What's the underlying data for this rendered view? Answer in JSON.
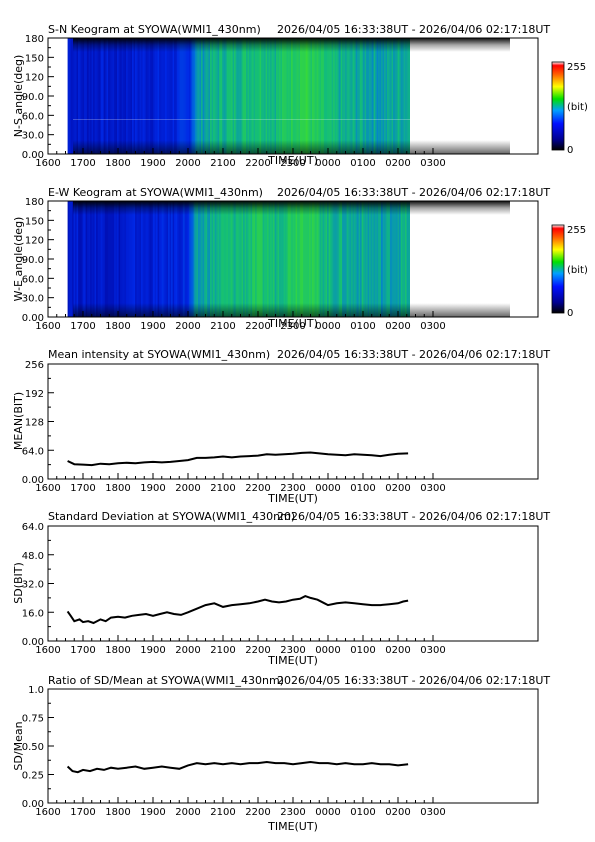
{
  "chart_data": [
    {
      "type": "heatmap",
      "title": "S-N Keogram at SYOWA(WMI1_430nm)",
      "time_range": "2026/04/05 16:33:38UT - 2026/04/06 02:17:18UT",
      "xlabel": "TIME(UT)",
      "ylabel": "N-S angle(deg)",
      "x_ticks": [
        "1600",
        "1700",
        "1800",
        "1900",
        "2000",
        "2100",
        "2200",
        "2300",
        "0000",
        "0100",
        "0200",
        "0300"
      ],
      "y_ticks": [
        "0.00",
        "30.0",
        "60.0",
        "90.0",
        "120",
        "150",
        "180"
      ],
      "ylim": [
        0,
        180
      ],
      "data_start_hours": 16.56,
      "data_end_hours": 26.29,
      "colorbar": {
        "min_label": "0",
        "max_label": "255",
        "unit_label": "(bit)"
      },
      "intensity_profile": {
        "hours": [
          16.56,
          17.0,
          17.5,
          18.0,
          18.5,
          19.0,
          19.5,
          20.0,
          20.2,
          20.5,
          21.0,
          21.5,
          22.0,
          22.5,
          23.0,
          23.3,
          23.6,
          24.0,
          24.5,
          25.0,
          25.5,
          26.0,
          26.29
        ],
        "levels": [
          0.22,
          0.2,
          0.21,
          0.2,
          0.22,
          0.22,
          0.23,
          0.25,
          0.38,
          0.42,
          0.44,
          0.45,
          0.47,
          0.45,
          0.5,
          0.52,
          0.48,
          0.44,
          0.42,
          0.42,
          0.4,
          0.42,
          0.43
        ]
      }
    },
    {
      "type": "heatmap",
      "title": "E-W Keogram at SYOWA(WMI1_430nm)",
      "time_range": "2026/04/05 16:33:38UT - 2026/04/06 02:17:18UT",
      "xlabel": "TIME(UT)",
      "ylabel": "W-E angle(deg)",
      "x_ticks": [
        "1600",
        "1700",
        "1800",
        "1900",
        "2000",
        "2100",
        "2200",
        "2300",
        "0000",
        "0100",
        "0200",
        "0300"
      ],
      "y_ticks": [
        "0.00",
        "30.0",
        "60.0",
        "90.0",
        "120",
        "150",
        "180"
      ],
      "ylim": [
        0,
        180
      ],
      "data_start_hours": 16.56,
      "data_end_hours": 26.29,
      "colorbar": {
        "min_label": "0",
        "max_label": "255",
        "unit_label": "(bit)"
      },
      "intensity_profile": {
        "hours": [
          16.56,
          17.0,
          17.5,
          18.0,
          18.5,
          19.0,
          19.5,
          20.0,
          20.2,
          20.5,
          21.0,
          21.5,
          22.0,
          22.5,
          23.0,
          23.3,
          23.6,
          24.0,
          24.5,
          25.0,
          25.5,
          26.0,
          26.29
        ],
        "levels": [
          0.22,
          0.2,
          0.21,
          0.2,
          0.22,
          0.22,
          0.23,
          0.25,
          0.38,
          0.42,
          0.44,
          0.45,
          0.47,
          0.45,
          0.5,
          0.52,
          0.48,
          0.44,
          0.42,
          0.42,
          0.4,
          0.42,
          0.43
        ]
      }
    },
    {
      "type": "line",
      "title": "Mean intensity at SYOWA(WMI1_430nm)",
      "time_range": "2026/04/05 16:33:38UT - 2026/04/06 02:17:18UT",
      "xlabel": "TIME(UT)",
      "ylabel": "MEAN(BIT)",
      "x_ticks": [
        "1600",
        "1700",
        "1800",
        "1900",
        "2000",
        "2100",
        "2200",
        "2300",
        "0000",
        "0100",
        "0200",
        "0300"
      ],
      "y_ticks": [
        "0.00",
        "64.0",
        "128",
        "192",
        "256"
      ],
      "ylim": [
        0,
        256
      ],
      "series": [
        {
          "x": [
            16.56,
            16.75,
            17.0,
            17.25,
            17.5,
            17.75,
            18.0,
            18.25,
            18.5,
            18.75,
            19.0,
            19.25,
            19.5,
            19.75,
            20.0,
            20.25,
            20.5,
            20.75,
            21.0,
            21.25,
            21.5,
            21.75,
            22.0,
            22.25,
            22.5,
            22.75,
            23.0,
            23.25,
            23.5,
            23.75,
            24.0,
            24.25,
            24.5,
            24.75,
            25.0,
            25.25,
            25.5,
            25.75,
            26.0,
            26.29
          ],
          "y": [
            40,
            33,
            32,
            31,
            34,
            33,
            35,
            36,
            35,
            37,
            38,
            37,
            38,
            40,
            42,
            47,
            47,
            48,
            50,
            48,
            50,
            51,
            52,
            55,
            54,
            55,
            56,
            58,
            59,
            57,
            55,
            54,
            53,
            55,
            54,
            53,
            51,
            54,
            56,
            57
          ]
        }
      ]
    },
    {
      "type": "line",
      "title": "Standard Deviation at SYOWA(WMI1_430nm)",
      "time_range": "2026/04/05 16:33:38UT - 2026/04/06 02:17:18UT",
      "xlabel": "TIME(UT)",
      "ylabel": "SD(BIT)",
      "x_ticks": [
        "1600",
        "1700",
        "1800",
        "1900",
        "2000",
        "2100",
        "2200",
        "2300",
        "0000",
        "0100",
        "0200",
        "0300"
      ],
      "y_ticks": [
        "0.00",
        "16.0",
        "32.0",
        "48.0",
        "64.0"
      ],
      "ylim": [
        0,
        64
      ],
      "series": [
        {
          "x": [
            16.56,
            16.65,
            16.75,
            16.9,
            17.0,
            17.15,
            17.3,
            17.5,
            17.65,
            17.8,
            18.0,
            18.2,
            18.4,
            18.6,
            18.8,
            19.0,
            19.2,
            19.4,
            19.6,
            19.8,
            20.0,
            20.25,
            20.5,
            20.75,
            21.0,
            21.25,
            21.5,
            21.75,
            22.0,
            22.2,
            22.4,
            22.6,
            22.8,
            23.0,
            23.2,
            23.35,
            23.5,
            23.7,
            23.9,
            24.0,
            24.25,
            24.5,
            24.75,
            25.0,
            25.25,
            25.5,
            25.75,
            26.0,
            26.15,
            26.29
          ],
          "y": [
            16.5,
            14,
            11,
            12,
            10.5,
            11,
            10,
            12,
            11,
            13,
            13.5,
            13,
            14,
            14.5,
            15,
            14,
            15,
            16,
            15,
            14.5,
            16,
            18,
            20,
            21,
            19,
            20,
            20.5,
            21,
            22,
            23,
            22,
            21.5,
            22,
            23,
            23.5,
            25,
            24,
            23,
            21,
            20,
            21,
            21.5,
            21,
            20.5,
            20,
            20,
            20.5,
            21,
            22,
            22.5
          ]
        }
      ]
    },
    {
      "type": "line",
      "title": "Ratio of SD/Mean at SYOWA(WMI1_430nm)",
      "time_range": "2026/04/05 16:33:38UT - 2026/04/06 02:17:18UT",
      "xlabel": "TIME(UT)",
      "ylabel": "SD/Mean",
      "x_ticks": [
        "1600",
        "1700",
        "1800",
        "1900",
        "2000",
        "2100",
        "2200",
        "2300",
        "0000",
        "0100",
        "0200",
        "0300"
      ],
      "y_ticks": [
        "0.00",
        "0.25",
        "0.50",
        "0.75",
        "1.0"
      ],
      "ylim": [
        0,
        1
      ],
      "series": [
        {
          "x": [
            16.56,
            16.7,
            16.85,
            17.0,
            17.2,
            17.4,
            17.6,
            17.8,
            18.0,
            18.25,
            18.5,
            18.75,
            19.0,
            19.25,
            19.5,
            19.75,
            20.0,
            20.25,
            20.5,
            20.75,
            21.0,
            21.25,
            21.5,
            21.75,
            22.0,
            22.25,
            22.5,
            22.75,
            23.0,
            23.25,
            23.5,
            23.75,
            24.0,
            24.25,
            24.5,
            24.75,
            25.0,
            25.25,
            25.5,
            25.75,
            26.0,
            26.29
          ],
          "y": [
            0.32,
            0.28,
            0.27,
            0.29,
            0.28,
            0.3,
            0.29,
            0.31,
            0.3,
            0.31,
            0.32,
            0.3,
            0.31,
            0.32,
            0.31,
            0.3,
            0.33,
            0.35,
            0.34,
            0.35,
            0.34,
            0.35,
            0.34,
            0.35,
            0.35,
            0.36,
            0.35,
            0.35,
            0.34,
            0.35,
            0.36,
            0.35,
            0.35,
            0.34,
            0.35,
            0.34,
            0.34,
            0.35,
            0.34,
            0.34,
            0.33,
            0.34
          ]
        }
      ]
    }
  ]
}
